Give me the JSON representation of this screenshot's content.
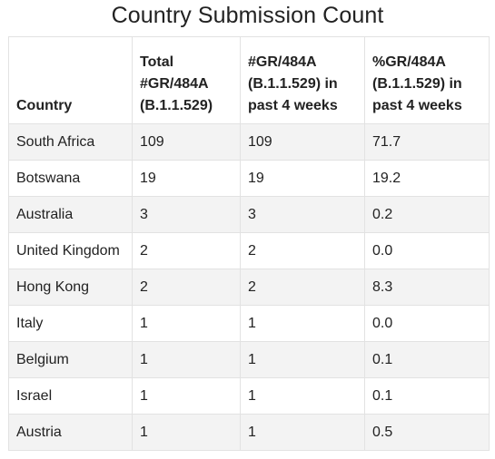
{
  "title": "Country Submission Count",
  "table": {
    "headers": [
      "Country",
      "Total #GR/484A (B.1.1.529)",
      "#GR/484A (B.1.1.529) in past 4 weeks",
      "%GR/484A (B.1.1.529) in past 4 weeks"
    ],
    "rows": [
      [
        "South Africa",
        "109",
        "109",
        "71.7"
      ],
      [
        "Botswana",
        "19",
        "19",
        "19.2"
      ],
      [
        "Australia",
        "3",
        "3",
        "0.2"
      ],
      [
        "United Kingdom",
        "2",
        "2",
        "0.0"
      ],
      [
        "Hong Kong",
        "2",
        "2",
        "8.3"
      ],
      [
        "Italy",
        "1",
        "1",
        "0.0"
      ],
      [
        "Belgium",
        "1",
        "1",
        "0.1"
      ],
      [
        "Israel",
        "1",
        "1",
        "0.1"
      ],
      [
        "Austria",
        "1",
        "1",
        "0.5"
      ]
    ]
  }
}
